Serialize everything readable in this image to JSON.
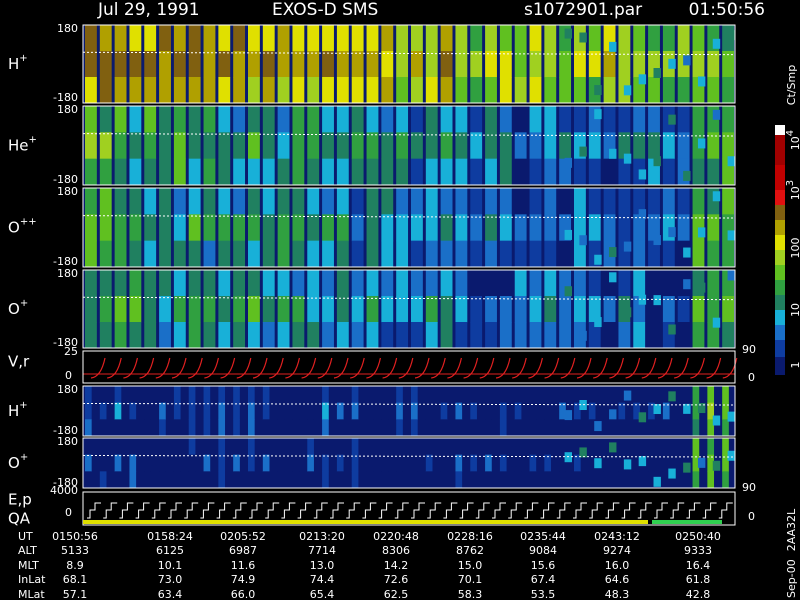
{
  "header": {
    "date": "Jul 29, 1991",
    "instrument": "EXOS-D SMS",
    "file": "s1072901.par",
    "time": "01:50:56"
  },
  "ion_panels": [
    {
      "label": "H",
      "sup": "+",
      "top": "180",
      "bottom": "-180"
    },
    {
      "label": "He",
      "sup": "+",
      "top": "180",
      "bottom": "-180"
    },
    {
      "label": "O",
      "sup": "++",
      "top": "180",
      "bottom": "-180"
    },
    {
      "label": "O",
      "sup": "+",
      "top": "180",
      "bottom": "-180"
    }
  ],
  "vr_panel": {
    "label": "V,r",
    "left_top": "25",
    "left_bottom": "0",
    "right_top": "90",
    "right_bottom": "0"
  },
  "lower_panels": [
    {
      "label": "H",
      "sup": "+",
      "top": "180",
      "bottom": "-180"
    },
    {
      "label": "O",
      "sup": "+",
      "top": "180",
      "bottom": "-180",
      "right": "90"
    }
  ],
  "ep_panel": {
    "label": "E,p",
    "label2": "QA",
    "left_top": "4000",
    "left_bottom": "0",
    "right": "0"
  },
  "colorbar": {
    "title": "Ct/Smp",
    "ticks": [
      {
        "label": "10",
        "sup": "4"
      },
      {
        "label": "10",
        "sup": "3"
      },
      {
        "label": "100"
      },
      {
        "label": "10"
      },
      {
        "label": "1"
      }
    ]
  },
  "table": {
    "rows": [
      {
        "label": "UT",
        "values": [
          "0150:56",
          "0158:24",
          "0205:52",
          "0213:20",
          "0220:48",
          "0228:16",
          "0235:44",
          "0243:12",
          "0250:40"
        ]
      },
      {
        "label": "ALT",
        "values": [
          "5133",
          "6125",
          "6987",
          "7714",
          "8306",
          "8762",
          "9084",
          "9274",
          "9333"
        ]
      },
      {
        "label": "MLT",
        "values": [
          "8.9",
          "10.1",
          "11.6",
          "13.0",
          "14.2",
          "15.0",
          "15.6",
          "16.0",
          "16.4"
        ]
      },
      {
        "label": "InLat",
        "values": [
          "68.1",
          "73.0",
          "74.9",
          "74.4",
          "72.6",
          "70.1",
          "67.4",
          "64.6",
          "61.8"
        ]
      },
      {
        "label": "MLat",
        "values": [
          "57.1",
          "63.4",
          "66.0",
          "65.4",
          "62.5",
          "58.3",
          "53.5",
          "48.3",
          "42.8"
        ]
      }
    ]
  },
  "footer": {
    "date": "Sep-00",
    "code": "2AA32L"
  }
}
